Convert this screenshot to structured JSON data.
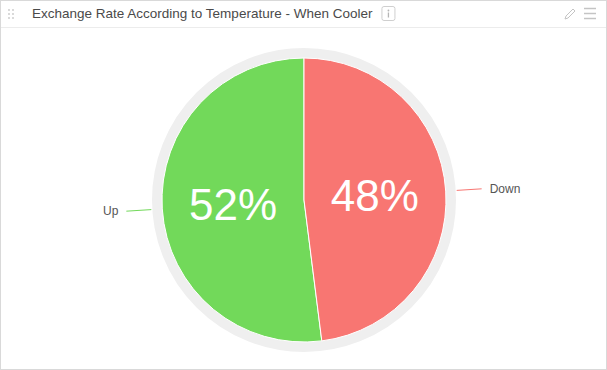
{
  "chart_data": {
    "type": "pie",
    "title": "Exchange Rate According to Temperature - When Cooler",
    "categories": [
      "Up",
      "Down"
    ],
    "values": [
      52,
      48
    ],
    "value_labels": [
      "52%",
      "48%"
    ],
    "colors": [
      "#72d95a",
      "#f87672"
    ],
    "data_labels": true
  }
}
